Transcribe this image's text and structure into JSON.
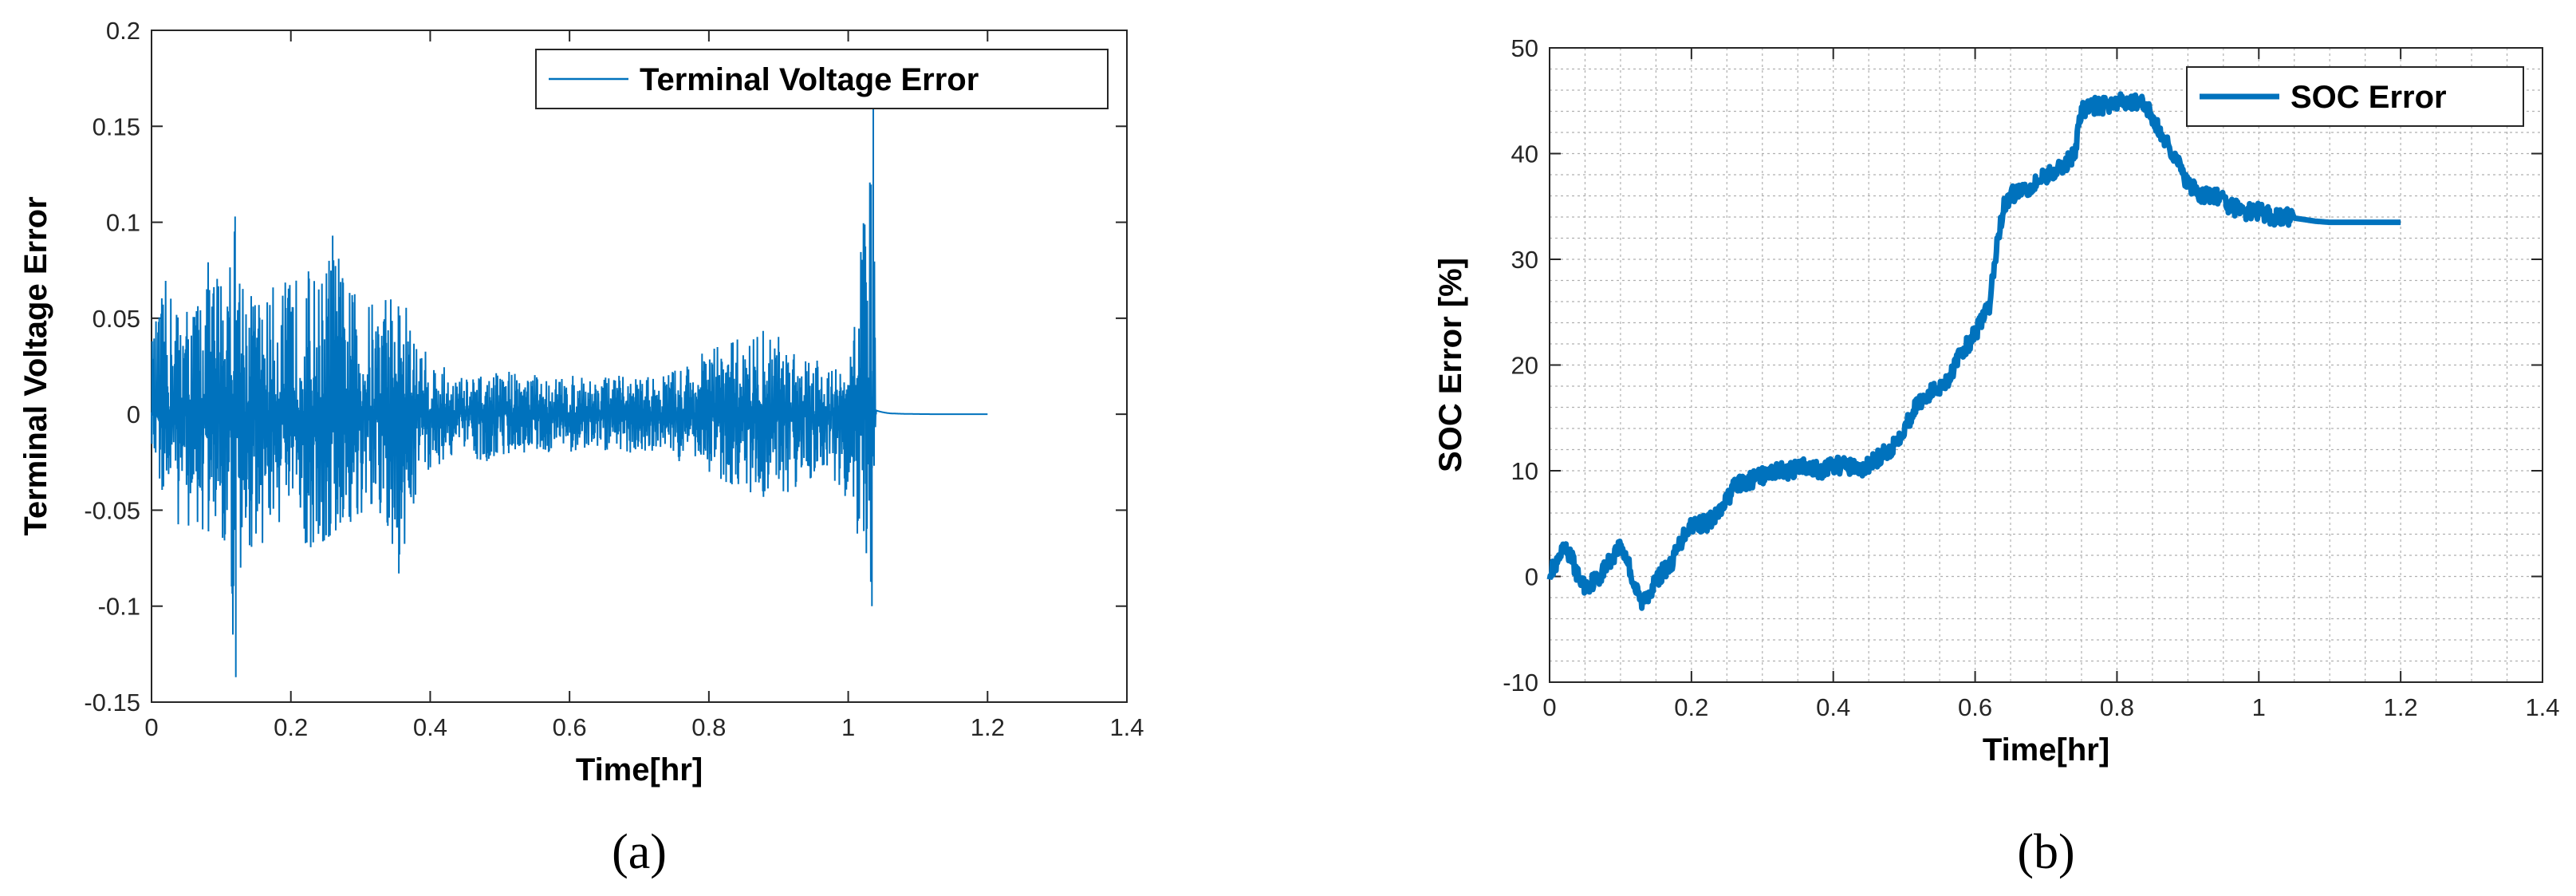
{
  "chart_data": [
    {
      "type": "line",
      "panel_label": "(a)",
      "xlabel": "Time[hr]",
      "ylabel": "Terminal Voltage Error",
      "xlim": [
        0,
        1.4
      ],
      "ylim": [
        -0.15,
        0.2
      ],
      "xticks": [
        "0",
        "0.2",
        "0.4",
        "0.6",
        "0.8",
        "1",
        "1.2",
        "1.4"
      ],
      "yticks": [
        "-0.15",
        "-0.1",
        "-0.05",
        "0",
        "0.05",
        "0.1",
        "0.15",
        "0.2"
      ],
      "grid": false,
      "legend_position": "top-right",
      "color": "#0072BD",
      "series": [
        {
          "name": "Terminal Voltage Error",
          "x": [
            0,
            0.02,
            0.04,
            0.06,
            0.08,
            0.1,
            0.12,
            0.14,
            0.16,
            0.18,
            0.2,
            0.22,
            0.24,
            0.26,
            0.28,
            0.3,
            0.32,
            0.34,
            0.36,
            0.38,
            0.4,
            0.44,
            0.48,
            0.52,
            0.56,
            0.6,
            0.64,
            0.68,
            0.72,
            0.76,
            0.8,
            0.84,
            0.88,
            0.92,
            0.96,
            1.0,
            1.035,
            1.04,
            1.06,
            1.1,
            1.2
          ],
          "upper": [
            0.04,
            0.07,
            0.06,
            0.06,
            0.08,
            0.08,
            0.103,
            0.07,
            0.06,
            0.07,
            0.07,
            0.08,
            0.07,
            0.093,
            0.07,
            0.06,
            0.06,
            0.07,
            0.065,
            0.04,
            0.03,
            0.02,
            0.02,
            0.025,
            0.02,
            0.02,
            0.02,
            0.02,
            0.02,
            0.025,
            0.035,
            0.04,
            0.045,
            0.04,
            0.03,
            0.02,
            0.162,
            0.002,
            0.001,
            0.001,
            0.0
          ],
          "lower": [
            -0.02,
            -0.05,
            -0.06,
            -0.06,
            -0.07,
            -0.06,
            -0.137,
            -0.07,
            -0.07,
            -0.06,
            -0.06,
            -0.07,
            -0.08,
            -0.07,
            -0.06,
            -0.06,
            -0.06,
            -0.07,
            -0.083,
            -0.04,
            -0.03,
            -0.02,
            -0.025,
            -0.02,
            -0.02,
            -0.02,
            -0.02,
            -0.02,
            -0.02,
            -0.025,
            -0.03,
            -0.04,
            -0.045,
            -0.04,
            -0.03,
            -0.045,
            -0.1,
            0.0,
            0.0,
            0.0,
            0.0
          ]
        }
      ]
    },
    {
      "type": "line",
      "panel_label": "(b)",
      "xlabel": "Time[hr]",
      "ylabel": "SOC Error [%]",
      "xlim": [
        0,
        1.4
      ],
      "ylim": [
        -10,
        50
      ],
      "xticks": [
        "0",
        "0.2",
        "0.4",
        "0.6",
        "0.8",
        "1",
        "1.2",
        "1.4"
      ],
      "yticks": [
        "-10",
        "0",
        "10",
        "20",
        "30",
        "40",
        "50"
      ],
      "grid": true,
      "legend_position": "top-right",
      "color": "#0072BD",
      "series": [
        {
          "name": "SOC Error",
          "x": [
            0,
            0.01,
            0.02,
            0.03,
            0.04,
            0.05,
            0.06,
            0.07,
            0.08,
            0.09,
            0.1,
            0.11,
            0.12,
            0.13,
            0.14,
            0.15,
            0.16,
            0.17,
            0.18,
            0.19,
            0.2,
            0.22,
            0.24,
            0.26,
            0.28,
            0.3,
            0.32,
            0.34,
            0.36,
            0.38,
            0.4,
            0.42,
            0.44,
            0.46,
            0.48,
            0.5,
            0.52,
            0.54,
            0.56,
            0.58,
            0.6,
            0.62,
            0.63,
            0.64,
            0.65,
            0.66,
            0.68,
            0.7,
            0.72,
            0.74,
            0.75,
            0.76,
            0.78,
            0.8,
            0.82,
            0.84,
            0.85,
            0.86,
            0.88,
            0.9,
            0.92,
            0.94,
            0.96,
            0.98,
            1.0,
            1.02,
            1.04,
            1.06,
            1.08,
            1.1,
            1.15,
            1.2
          ],
          "y": [
            0.5,
            1.0,
            2.5,
            2.0,
            0.0,
            -1.0,
            -0.5,
            0.0,
            1.0,
            2.0,
            3.0,
            1.5,
            -1.0,
            -2.5,
            -1.5,
            -0.5,
            0.5,
            1.0,
            2.5,
            4.0,
            5.0,
            5.0,
            6.0,
            8.5,
            9.0,
            9.5,
            10.0,
            10.0,
            10.5,
            10.0,
            10.5,
            10.5,
            10.0,
            11.0,
            12.0,
            14.0,
            16.5,
            17.5,
            18.5,
            21.0,
            23.0,
            25.5,
            31.0,
            35.0,
            36.0,
            36.5,
            37.0,
            38.0,
            38.5,
            40.0,
            44.0,
            44.5,
            44.5,
            44.8,
            45.0,
            44.5,
            43.5,
            42.0,
            40.0,
            37.0,
            36.0,
            36.0,
            35.0,
            34.5,
            34.5,
            34.0,
            34.0,
            33.8,
            33.6,
            33.5,
            33.5,
            33.5
          ]
        }
      ]
    }
  ]
}
